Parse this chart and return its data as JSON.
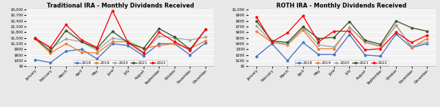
{
  "months": [
    "January",
    "February",
    "March",
    "April",
    "May",
    "June",
    "July",
    "August",
    "September",
    "October",
    "November",
    "December"
  ],
  "trad_ira": {
    "2018": [
      350,
      200,
      800,
      900,
      400,
      1200,
      1100,
      550,
      1200,
      1200,
      600,
      1250
    ],
    "2019": [
      1450,
      700,
      1200,
      750,
      700,
      1300,
      1300,
      950,
      1100,
      1200,
      950,
      1350
    ],
    "2020": [
      1500,
      950,
      1450,
      1300,
      850,
      1500,
      1350,
      750,
      1600,
      1500,
      1400,
      1550
    ],
    "2021": [
      1500,
      800,
      1900,
      1300,
      950,
      1850,
      1250,
      950,
      2000,
      1550,
      900,
      1950
    ],
    "2022": [
      1500,
      1000,
      2200,
      1400,
      1000,
      2950,
      1250,
      700,
      1800,
      1300,
      850,
      1950
    ]
  },
  "roth_ira": {
    "2018": [
      175,
      400,
      100,
      420,
      210,
      210,
      560,
      200,
      180,
      570,
      330,
      400
    ],
    "2019": [
      620,
      420,
      380,
      640,
      310,
      310,
      690,
      420,
      350,
      730,
      330,
      490
    ],
    "2020": [
      710,
      430,
      390,
      680,
      380,
      340,
      680,
      440,
      360,
      720,
      350,
      430
    ],
    "2021": [
      800,
      450,
      420,
      700,
      490,
      510,
      790,
      460,
      390,
      800,
      680,
      620
    ],
    "2022": [
      870,
      430,
      590,
      890,
      430,
      620,
      620,
      290,
      310,
      600,
      420,
      550
    ]
  },
  "trad_ylim": [
    0,
    3000
  ],
  "trad_yticks": [
    0,
    300,
    600,
    900,
    1200,
    1500,
    1800,
    2100,
    2400,
    2700,
    3000
  ],
  "roth_ylim": [
    0,
    1000
  ],
  "roth_yticks": [
    0,
    100,
    200,
    300,
    400,
    500,
    600,
    700,
    800,
    900,
    1000
  ],
  "trad_title": "Traditional IRA - Monthly Dividends Received",
  "roth_title": "ROTH IRA - Monthly Dividends Received",
  "colors": {
    "2018": "#4472C4",
    "2019": "#ED7D31",
    "2020": "#A5A5A5",
    "2021": "#375623",
    "2022": "#FF0000"
  },
  "legend_labels": [
    "2018",
    "2019",
    "2020",
    "2021",
    "2022"
  ],
  "bg_color": "#E8E8E8",
  "plot_bg": "#F2F2F2",
  "title_fontsize": 6.0,
  "tick_fontsize": 3.8,
  "legend_fontsize": 4.0,
  "linewidth": 1.0,
  "markersize": 2.0
}
